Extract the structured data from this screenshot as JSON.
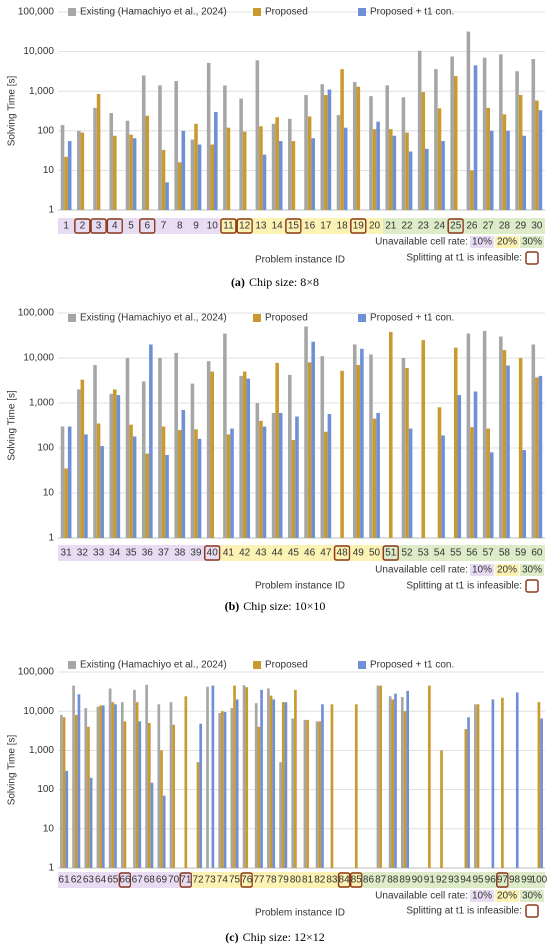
{
  "chart_data": [
    {
      "type": "bar",
      "log_scale": true,
      "grid": true,
      "legend": "top",
      "ylabel": "Solving Time [s]",
      "xlabel": "Problem instance ID",
      "caption_label": "(a)",
      "caption": "Chip size: 8×8",
      "ylim": [
        1,
        100000
      ],
      "yticks": [
        1,
        10,
        100,
        {
          "value": 1000,
          "label": "1,000"
        },
        {
          "value": 10000,
          "label": "10,000"
        },
        {
          "value": 100000,
          "label": "100,000"
        }
      ],
      "categories": [
        "1",
        "2",
        "3",
        "4",
        "5",
        "6",
        "7",
        "8",
        "9",
        "10",
        "11",
        "12",
        "13",
        "14",
        "15",
        "16",
        "17",
        "18",
        "19",
        "20",
        "21",
        "22",
        "23",
        "24",
        "25",
        "26",
        "27",
        "28",
        "29",
        "30"
      ],
      "series": [
        {
          "name": "Existing (Hamachiyo et al., 2024)",
          "color": "#a6a6a6",
          "values": [
            140,
            100,
            380,
            280,
            180,
            2500,
            1400,
            1800,
            60,
            5200,
            1400,
            650,
            6000,
            150,
            200,
            800,
            1500,
            250,
            1700,
            750,
            1400,
            700,
            10500,
            3600,
            7500,
            32000,
            7000,
            8500,
            3200,
            6500
          ]
        },
        {
          "name": "Proposed",
          "color": "#c99a2e",
          "values": [
            22,
            90,
            850,
            75,
            80,
            240,
            33,
            16,
            150,
            45,
            120,
            95,
            130,
            220,
            55,
            230,
            800,
            3600,
            1300,
            110,
            110,
            90,
            950,
            370,
            2400,
            10,
            380,
            260,
            800,
            580
          ]
        },
        {
          "name": "Proposed + t1 con.",
          "color": "#6f8fd6",
          "values": [
            55,
            null,
            null,
            null,
            65,
            null,
            5,
            100,
            45,
            300,
            null,
            null,
            25,
            55,
            null,
            65,
            1100,
            120,
            null,
            170,
            75,
            30,
            35,
            55,
            null,
            4500,
            100,
            100,
            75,
            330
          ]
        }
      ],
      "rate_title": "Unavailable cell rate:",
      "rates": [
        {
          "label": "10%",
          "color": "#e8dcf3"
        },
        {
          "label": "20%",
          "color": "#fbf2b3"
        },
        {
          "label": "30%",
          "color": "#dcebc8"
        }
      ],
      "category_rate": [
        "10%",
        "10%",
        "10%",
        "10%",
        "10%",
        "10%",
        "10%",
        "10%",
        "10%",
        "10%",
        "20%",
        "20%",
        "20%",
        "20%",
        "20%",
        "20%",
        "20%",
        "20%",
        "20%",
        "20%",
        "30%",
        "30%",
        "30%",
        "30%",
        "30%",
        "30%",
        "30%",
        "30%",
        "30%",
        "30%"
      ],
      "infeasible_label": "Splitting at t1 is infeasible:",
      "split_infeasible": [
        false,
        true,
        true,
        true,
        false,
        true,
        false,
        false,
        false,
        false,
        true,
        true,
        false,
        false,
        true,
        false,
        false,
        false,
        true,
        false,
        false,
        false,
        false,
        false,
        true,
        false,
        false,
        false,
        false,
        false
      ]
    },
    {
      "type": "bar",
      "log_scale": true,
      "grid": true,
      "legend": "top",
      "ylabel": "Solving Time [s]",
      "xlabel": "Problem instance ID",
      "caption_label": "(b)",
      "caption": "Chip size: 10×10",
      "ylim": [
        1,
        100000
      ],
      "yticks": [
        1,
        10,
        100,
        {
          "value": 1000,
          "label": "1,000"
        },
        {
          "value": 10000,
          "label": "10,000"
        },
        {
          "value": 100000,
          "label": "100,000"
        }
      ],
      "categories": [
        "31",
        "32",
        "33",
        "34",
        "35",
        "36",
        "37",
        "38",
        "39",
        "40",
        "41",
        "42",
        "43",
        "44",
        "45",
        "46",
        "47",
        "48",
        "49",
        "50",
        "51",
        "52",
        "53",
        "54",
        "55",
        "56",
        "57",
        "58",
        "59",
        "60"
      ],
      "series": [
        {
          "name": "Existing (Hamachiyo et al., 2024)",
          "color": "#a6a6a6",
          "values": [
            300,
            2000,
            7000,
            1600,
            10000,
            3000,
            10000,
            13000,
            2700,
            8500,
            35000,
            4000,
            1000,
            600,
            4200,
            50000,
            11000,
            null,
            20000,
            12000,
            null,
            10000,
            null,
            null,
            null,
            35000,
            40000,
            30000,
            null,
            20000
          ]
        },
        {
          "name": "Proposed",
          "color": "#c99a2e",
          "values": [
            35,
            3300,
            350,
            2000,
            330,
            75,
            300,
            250,
            260,
            5000,
            200,
            5000,
            400,
            7800,
            150,
            8000,
            230,
            5200,
            7000,
            450,
            38000,
            6000,
            25000,
            800,
            17000,
            290,
            270,
            15000,
            10000,
            3700
          ]
        },
        {
          "name": "Proposed + t1 con.",
          "color": "#6f8fd6",
          "values": [
            300,
            200,
            110,
            1500,
            180,
            20000,
            70,
            700,
            160,
            null,
            270,
            3500,
            300,
            600,
            500,
            23000,
            570,
            null,
            16000,
            600,
            null,
            270,
            null,
            190,
            1500,
            1800,
            80,
            6800,
            90,
            4000
          ]
        }
      ],
      "rate_title": "Unavailable cell rate:",
      "rates": [
        {
          "label": "10%",
          "color": "#e8dcf3"
        },
        {
          "label": "20%",
          "color": "#fbf2b3"
        },
        {
          "label": "30%",
          "color": "#dcebc8"
        }
      ],
      "category_rate": [
        "10%",
        "10%",
        "10%",
        "10%",
        "10%",
        "10%",
        "10%",
        "10%",
        "10%",
        "10%",
        "20%",
        "20%",
        "20%",
        "20%",
        "20%",
        "20%",
        "20%",
        "20%",
        "20%",
        "20%",
        "30%",
        "30%",
        "30%",
        "30%",
        "30%",
        "30%",
        "30%",
        "30%",
        "30%",
        "30%"
      ],
      "infeasible_label": "Splitting at t1 is infeasible:",
      "split_infeasible": [
        false,
        false,
        false,
        false,
        false,
        false,
        false,
        false,
        false,
        true,
        false,
        false,
        false,
        false,
        false,
        false,
        false,
        true,
        false,
        false,
        true,
        false,
        false,
        false,
        false,
        false,
        false,
        false,
        false,
        false
      ]
    },
    {
      "type": "bar",
      "log_scale": true,
      "grid": true,
      "legend": "top",
      "ylabel": "Solving Time [s]",
      "xlabel": "Problem instance ID",
      "caption_label": "(c)",
      "caption": "Chip size: 12×12",
      "ylim": [
        1,
        100000
      ],
      "yticks": [
        1,
        10,
        100,
        {
          "value": 1000,
          "label": "1,000"
        },
        {
          "value": 10000,
          "label": "10,000"
        },
        {
          "value": 100000,
          "label": "100,000"
        }
      ],
      "categories": [
        "61",
        "62",
        "63",
        "64",
        "65",
        "66",
        "67",
        "68",
        "69",
        "70",
        "71",
        "72",
        "73",
        "74",
        "75",
        "76",
        "77",
        "78",
        "79",
        "80",
        "81",
        "82",
        "83",
        "84",
        "85",
        "86",
        "87",
        "88",
        "89",
        "90",
        "91",
        "92",
        "93",
        "94",
        "95",
        "96",
        "97",
        "98",
        "99",
        "100"
      ],
      "series": [
        {
          "name": "Existing (Hamachiyo et al., 2024)",
          "color": "#a6a6a6",
          "values": [
            8000,
            45000,
            12000,
            13000,
            38000,
            17000,
            35000,
            47000,
            15000,
            17000,
            null,
            null,
            42000,
            9000,
            12000,
            46000,
            16000,
            38000,
            500,
            6500,
            6000,
            5500,
            null,
            null,
            null,
            null,
            45000,
            24000,
            23000,
            null,
            null,
            null,
            null,
            null,
            15000,
            null,
            null,
            null,
            null,
            null
          ]
        },
        {
          "name": "Proposed",
          "color": "#c99a2e",
          "values": [
            7000,
            8000,
            4000,
            14000,
            17000,
            5500,
            17000,
            5000,
            1000,
            4500,
            24000,
            500,
            null,
            10000,
            45000,
            41000,
            4000,
            25000,
            17000,
            35000,
            6000,
            5500,
            15000,
            null,
            15000,
            null,
            45000,
            20000,
            10000,
            null,
            45000,
            1000,
            null,
            3500,
            15000,
            null,
            22000,
            null,
            null,
            17000
          ]
        },
        {
          "name": "Proposed + t1 con.",
          "color": "#6f8fd6",
          "values": [
            300,
            27000,
            200,
            14000,
            15000,
            null,
            5500,
            150,
            70,
            null,
            null,
            4800,
            45000,
            9500,
            20000,
            null,
            35000,
            20000,
            17000,
            null,
            null,
            15000,
            null,
            null,
            null,
            null,
            null,
            28000,
            33000,
            null,
            null,
            null,
            null,
            7000,
            null,
            20000,
            null,
            30000,
            null,
            6500
          ]
        }
      ],
      "rate_title": "Unavailable cell rate:",
      "rates": [
        {
          "label": "10%",
          "color": "#e8dcf3"
        },
        {
          "label": "20%",
          "color": "#fbf2b3"
        },
        {
          "label": "30%",
          "color": "#dcebc8"
        }
      ],
      "category_rate": [
        "10%",
        "10%",
        "10%",
        "10%",
        "10%",
        "10%",
        "10%",
        "10%",
        "10%",
        "10%",
        "10%",
        "20%",
        "20%",
        "20%",
        "20%",
        "20%",
        "20%",
        "20%",
        "20%",
        "20%",
        "20%",
        "20%",
        "20%",
        "20%",
        "20%",
        "30%",
        "30%",
        "30%",
        "30%",
        "30%",
        "30%",
        "30%",
        "30%",
        "30%",
        "30%",
        "30%",
        "30%",
        "30%",
        "30%",
        "30%"
      ],
      "infeasible_label": "Splitting at t1 is infeasible:",
      "split_infeasible": [
        false,
        false,
        false,
        false,
        false,
        true,
        false,
        false,
        false,
        false,
        true,
        false,
        false,
        false,
        false,
        true,
        false,
        false,
        false,
        false,
        false,
        false,
        false,
        true,
        true,
        false,
        false,
        false,
        false,
        false,
        false,
        false,
        false,
        false,
        false,
        false,
        true,
        false,
        false,
        false
      ]
    }
  ]
}
